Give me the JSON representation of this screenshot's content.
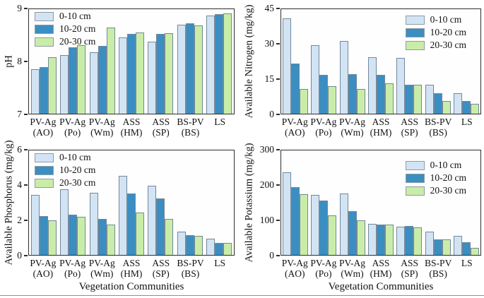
{
  "figure": {
    "x_axis_title": "Vegetation Communities",
    "legend_labels": [
      "0-10 cm",
      "10-20 cm",
      "20-30 cm"
    ],
    "colors": {
      "series_fill": [
        "#d2e4f4",
        "#3a8ec2",
        "#c9eda8"
      ],
      "bar_border": "#73889a",
      "axis": "#2e2e2e",
      "text": "#111111",
      "background": "#ffffff"
    }
  },
  "chart_data": [
    {
      "type": "bar",
      "key": "ph",
      "panel": "top-left",
      "ylabel": "pH",
      "ylim": [
        7,
        9
      ],
      "yticks": [
        7,
        8,
        9
      ],
      "grid": false,
      "legend_position": "top-left",
      "categories": [
        "PV-Ag (AO)",
        "PV-Ag (Po)",
        "PV-Ag (Wm)",
        "ASS (HM)",
        "ASS (SP)",
        "BS-PV (BS)",
        "LS"
      ],
      "series": [
        {
          "name": "0-10 cm",
          "values": [
            7.86,
            8.12,
            8.18,
            8.46,
            8.38,
            8.71,
            8.89
          ]
        },
        {
          "name": "10-20 cm",
          "values": [
            7.9,
            8.28,
            8.3,
            8.53,
            8.53,
            8.74,
            8.91
          ]
        },
        {
          "name": "20-30 cm",
          "values": [
            8.09,
            8.31,
            8.66,
            8.56,
            8.55,
            8.69,
            8.92
          ]
        }
      ]
    },
    {
      "type": "bar",
      "key": "nitrogen",
      "panel": "top-right",
      "ylabel": "Available Nitrogen (mg/kg)",
      "ylim": [
        0,
        45
      ],
      "yticks": [
        0,
        15,
        30,
        45
      ],
      "grid": false,
      "legend_position": "top-right",
      "categories": [
        "PV-Ag (AO)",
        "PV-Ag (Po)",
        "PV-Ag (Wm)",
        "ASS (HM)",
        "ASS (SP)",
        "BS-PV (BS)",
        "LS"
      ],
      "series": [
        {
          "name": "0-10 cm",
          "values": [
            41.2,
            29.7,
            31.5,
            24.5,
            24.0,
            12.4,
            8.8
          ]
        },
        {
          "name": "10-20 cm",
          "values": [
            21.6,
            16.8,
            17.2,
            16.9,
            12.4,
            8.9,
            5.4
          ]
        },
        {
          "name": "20-30 cm",
          "values": [
            10.6,
            11.8,
            10.6,
            13.0,
            12.4,
            5.5,
            4.2
          ]
        }
      ]
    },
    {
      "type": "bar",
      "key": "phosphorus",
      "panel": "bottom-left",
      "ylabel": "Available Phosphorus (mg/kg)",
      "xlabel": "Vegetation Communities",
      "ylim": [
        0,
        6
      ],
      "yticks": [
        0,
        2,
        4,
        6
      ],
      "grid": false,
      "legend_position": "top-left",
      "categories": [
        "PV-Ag (AO)",
        "PV-Ag (Po)",
        "PV-Ag (Wm)",
        "ASS (HM)",
        "ASS (SP)",
        "BS-PV (BS)",
        "LS"
      ],
      "series": [
        {
          "name": "0-10 cm",
          "values": [
            3.45,
            3.8,
            3.57,
            4.55,
            4.0,
            1.36,
            0.92
          ]
        },
        {
          "name": "10-20 cm",
          "values": [
            2.24,
            2.31,
            2.06,
            3.55,
            3.24,
            1.14,
            0.7
          ]
        },
        {
          "name": "20-30 cm",
          "values": [
            1.98,
            2.21,
            1.77,
            2.45,
            2.06,
            1.1,
            0.7
          ]
        }
      ]
    },
    {
      "type": "bar",
      "key": "potassium",
      "panel": "bottom-right",
      "ylabel": "Available Potassium (mg/kg)",
      "xlabel": "Vegetation Communities",
      "ylim": [
        0,
        300
      ],
      "yticks": [
        0,
        100,
        200,
        300
      ],
      "grid": false,
      "legend_position": "top-right",
      "categories": [
        "PV-Ag (AO)",
        "PV-Ag (Po)",
        "PV-Ag (Wm)",
        "ASS (HM)",
        "ASS (SP)",
        "BS-PV (BS)",
        "LS"
      ],
      "series": [
        {
          "name": "0-10 cm",
          "values": [
            238,
            173,
            177,
            90,
            81,
            68,
            55
          ]
        },
        {
          "name": "10-20 cm",
          "values": [
            196,
            156,
            126,
            87,
            83,
            45,
            36
          ]
        },
        {
          "name": "20-30 cm",
          "values": [
            175,
            113,
            99,
            88,
            79,
            44,
            20
          ]
        }
      ]
    }
  ]
}
